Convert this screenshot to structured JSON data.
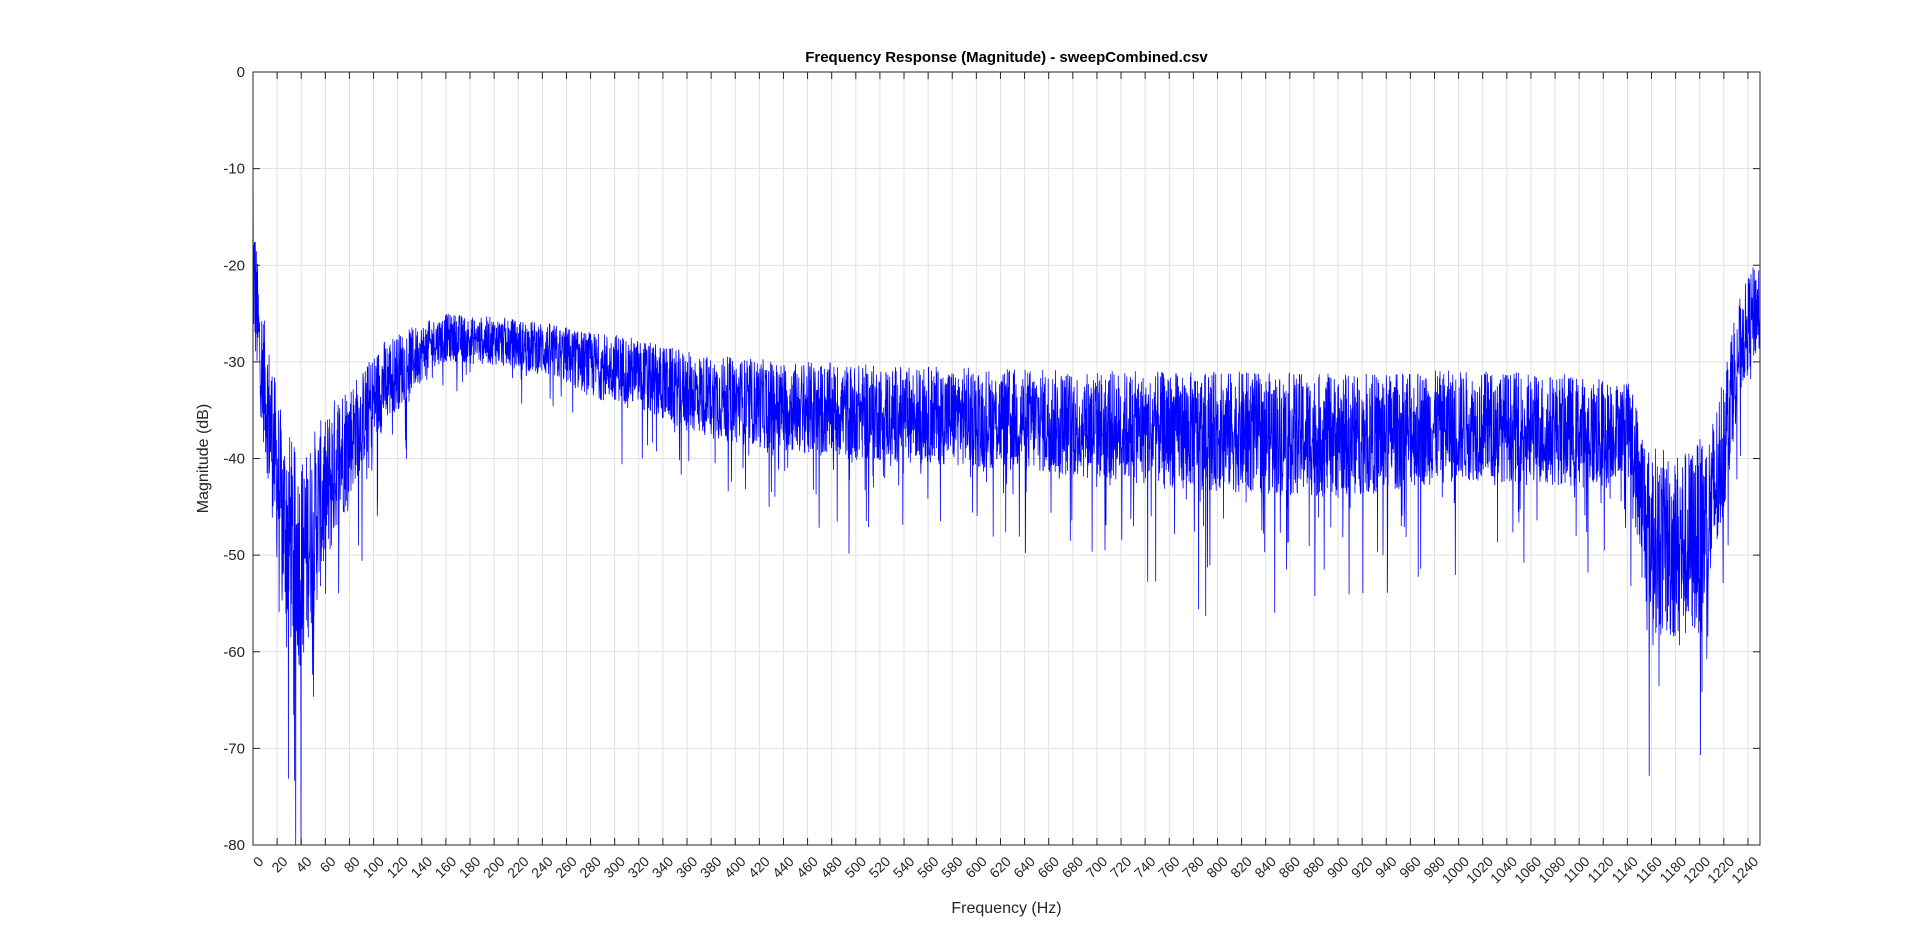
{
  "chart_data": {
    "type": "line",
    "title": "Frequency Response (Magnitude) - sweepCombined.csv",
    "xlabel": "Frequency (Hz)",
    "ylabel": "Magnitude (dB)",
    "xlim": [
      0,
      1250
    ],
    "ylim": [
      -80,
      0
    ],
    "xticks": [
      0,
      20,
      40,
      60,
      80,
      100,
      120,
      140,
      160,
      180,
      200,
      220,
      240,
      260,
      280,
      300,
      320,
      340,
      360,
      380,
      400,
      420,
      440,
      460,
      480,
      500,
      520,
      540,
      560,
      580,
      600,
      620,
      640,
      660,
      680,
      700,
      720,
      740,
      760,
      780,
      800,
      820,
      840,
      860,
      880,
      900,
      920,
      940,
      960,
      980,
      1000,
      1020,
      1040,
      1060,
      1080,
      1100,
      1120,
      1140,
      1160,
      1180,
      1200,
      1220,
      1240
    ],
    "yticks": [
      0,
      -10,
      -20,
      -30,
      -40,
      -50,
      -60,
      -70,
      -80
    ],
    "grid": true,
    "line_color": "#0000ff",
    "series": [
      {
        "x": [
          0,
          5,
          10,
          15,
          20,
          25,
          30,
          35,
          40,
          45,
          50,
          55,
          60,
          65,
          70,
          75,
          80,
          90,
          100,
          110,
          120,
          130,
          140,
          150,
          160,
          170,
          180,
          190,
          200,
          210,
          220,
          230,
          240,
          250,
          260,
          270,
          280,
          290,
          300,
          310,
          320,
          330,
          340,
          350,
          360,
          370,
          380,
          390,
          400,
          420,
          440,
          460,
          480,
          500,
          520,
          540,
          560,
          580,
          600,
          620,
          640,
          660,
          680,
          700,
          720,
          740,
          760,
          780,
          800,
          820,
          840,
          860,
          880,
          900,
          920,
          940,
          960,
          980,
          1000,
          1020,
          1040,
          1060,
          1080,
          1100,
          1120,
          1130,
          1140,
          1145,
          1150,
          1155,
          1160,
          1170,
          1180,
          1190,
          1200,
          1205,
          1210,
          1215,
          1220,
          1225,
          1230,
          1235,
          1240,
          1245,
          1250
        ],
        "center": [
          -20,
          -28,
          -33,
          -37,
          -42,
          -46,
          -48,
          -50,
          -51,
          -49,
          -47,
          -45,
          -44,
          -42,
          -40,
          -39,
          -38,
          -36,
          -34,
          -32,
          -31,
          -30,
          -29,
          -28,
          -27.5,
          -27.5,
          -27.8,
          -27.8,
          -27.8,
          -28,
          -28.2,
          -28.4,
          -28.6,
          -29,
          -29.3,
          -29.8,
          -30.3,
          -30.5,
          -30.5,
          -30.8,
          -31.3,
          -31.8,
          -32.2,
          -32.6,
          -33,
          -33.3,
          -33.6,
          -33.8,
          -34,
          -34.3,
          -34.6,
          -34.8,
          -35,
          -35.2,
          -35.3,
          -35.4,
          -35.5,
          -35.6,
          -35.7,
          -35.9,
          -36,
          -36.2,
          -36.4,
          -36.5,
          -36.7,
          -36.9,
          -37,
          -37.1,
          -37.2,
          -37.3,
          -37.4,
          -37.5,
          -37.6,
          -37.6,
          -37.5,
          -37.3,
          -37,
          -36.8,
          -36.6,
          -36.6,
          -36.7,
          -36.9,
          -37,
          -37.2,
          -37.5,
          -37,
          -36,
          -39,
          -43,
          -46,
          -48,
          -49,
          -49,
          -49,
          -48,
          -47,
          -45,
          -42,
          -38,
          -34,
          -30,
          -28,
          -26,
          -25,
          -24
        ],
        "spread": [
          8,
          6,
          7,
          8,
          9,
          10,
          11,
          11,
          11,
          10,
          10,
          9,
          8,
          8,
          7,
          7,
          6,
          5,
          5,
          4.5,
          4,
          3.5,
          3,
          2.5,
          2.5,
          2.5,
          2.5,
          2.5,
          2.5,
          2.6,
          2.6,
          2.7,
          2.8,
          2.9,
          3,
          3.2,
          3.4,
          3.5,
          3.5,
          3.6,
          3.7,
          3.8,
          3.9,
          4,
          4.1,
          4.2,
          4.3,
          4.4,
          4.5,
          4.6,
          4.7,
          4.8,
          4.9,
          5,
          5,
          5,
          5.1,
          5.1,
          5.2,
          5.3,
          5.4,
          5.5,
          5.6,
          5.7,
          5.8,
          5.9,
          6,
          6.1,
          6.2,
          6.3,
          6.3,
          6.4,
          6.4,
          6.4,
          6.3,
          6.2,
          6,
          5.9,
          5.8,
          5.7,
          5.7,
          5.8,
          5.8,
          5.8,
          5.8,
          5,
          4,
          6,
          8,
          9,
          9.5,
          10,
          10,
          10,
          10,
          9.5,
          9,
          8.5,
          8,
          7,
          6,
          5,
          5,
          5,
          5
        ]
      }
    ]
  }
}
